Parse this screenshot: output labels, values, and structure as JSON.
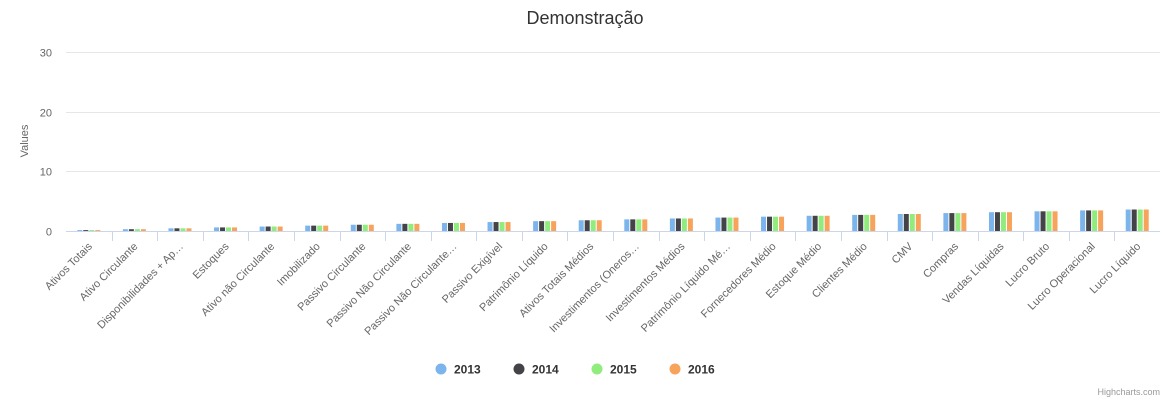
{
  "chart_data": {
    "type": "bar",
    "title": "Demonstração",
    "ylabel": "Values",
    "xlabel": "",
    "ylim": [
      0,
      30
    ],
    "yticks": [
      0,
      10,
      20,
      30
    ],
    "grid": true,
    "legend_position": "bottom-center",
    "categories": [
      "Ativos Totais",
      "Ativo Circulante",
      "Disponibilidades + Ap…",
      "Estoques",
      "Ativo não Circulante",
      "Imobilizado",
      "Passivo Circulante",
      "Passivo Não Circulante",
      "Passivo Não Circulante…",
      "Passivo Exigível",
      "Patrimônio Líquido",
      "Ativos Totais Médios",
      "Investimentos (Oneros…",
      "Investimentos Médios",
      "Patrimônio Líquido Mé…",
      "Fornecedores Médio",
      "Estoque Médio",
      "Clientes Médio",
      "CMV",
      "Compras",
      "Vendas Líquidas",
      "Lucro Bruto",
      "Lucro Operacional",
      "Lucro Líquido"
    ],
    "series": [
      {
        "name": "2013",
        "color": "#7cb5ec",
        "values": [
          0.15,
          0.3,
          0.45,
          0.6,
          0.75,
          0.9,
          1.05,
          1.2,
          1.35,
          1.5,
          1.65,
          1.8,
          1.95,
          2.1,
          2.25,
          2.4,
          2.55,
          2.7,
          2.85,
          3.0,
          3.15,
          3.3,
          3.45,
          3.6
        ]
      },
      {
        "name": "2014",
        "color": "#434348",
        "values": [
          0.15,
          0.3,
          0.45,
          0.6,
          0.75,
          0.9,
          1.05,
          1.2,
          1.35,
          1.5,
          1.65,
          1.8,
          1.95,
          2.1,
          2.25,
          2.4,
          2.55,
          2.7,
          2.85,
          3.0,
          3.15,
          3.3,
          3.45,
          3.6
        ]
      },
      {
        "name": "2015",
        "color": "#90ed7d",
        "values": [
          0.15,
          0.3,
          0.45,
          0.6,
          0.75,
          0.9,
          1.05,
          1.2,
          1.35,
          1.5,
          1.65,
          1.8,
          1.95,
          2.1,
          2.25,
          2.4,
          2.55,
          2.7,
          2.85,
          3.0,
          3.15,
          3.3,
          3.45,
          3.6
        ]
      },
      {
        "name": "2016",
        "color": "#f7a35c",
        "values": [
          0.15,
          0.3,
          0.45,
          0.6,
          0.75,
          0.9,
          1.05,
          1.2,
          1.35,
          1.5,
          1.65,
          1.8,
          1.95,
          2.1,
          2.25,
          2.4,
          2.55,
          2.7,
          2.85,
          3.0,
          3.15,
          3.3,
          3.45,
          3.6
        ]
      }
    ],
    "credits": "Highcharts.com"
  }
}
